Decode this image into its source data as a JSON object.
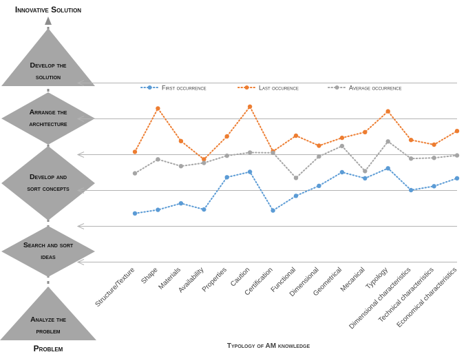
{
  "header": {
    "top_label": "Innovative Solution",
    "bottom_label": "Problem"
  },
  "stages": [
    {
      "shape": "triangle-up",
      "lines": [
        "Develop the",
        "solution"
      ]
    },
    {
      "shape": "diamond",
      "lines": [
        "Arrange the",
        "architecture"
      ]
    },
    {
      "shape": "diamond",
      "lines": [
        "Develop and",
        "sort concepts"
      ]
    },
    {
      "shape": "diamond",
      "lines": [
        "Search and sort",
        "ideas"
      ]
    },
    {
      "shape": "triangle-up",
      "lines": [
        "Analyze the",
        "problem"
      ]
    }
  ],
  "colors": {
    "shape_fill": "#a6a6a6",
    "connector": "#8c8c8c",
    "arrow": "#b3b3b3",
    "axis_text": "#404040",
    "legend_text": "#404040"
  },
  "chart_data": {
    "type": "line",
    "xlabel": "Typology of AM knowledge",
    "ylabel": "",
    "ylim": [
      0,
      5
    ],
    "grid": true,
    "legend_position": "top",
    "line_style": "dotted",
    "categories": [
      "Structure/Texture",
      "Shape",
      "Materials",
      "Availability",
      "Properties",
      "Caution",
      "Certification",
      "Functional",
      "Dimensional",
      "Geometrical",
      "Mecanical",
      "Typology",
      "Dimensional characteristics",
      "Technical characteristics",
      "Economical characteristics"
    ],
    "series": [
      {
        "name": "First occurrence",
        "color": "#5b9bd5",
        "values": [
          1.35,
          1.45,
          1.63,
          1.46,
          2.36,
          2.51,
          1.43,
          1.84,
          2.12,
          2.5,
          2.33,
          2.61,
          2.0,
          2.11,
          2.33
        ]
      },
      {
        "name": "Last occurence",
        "color": "#ed7d31",
        "values": [
          3.07,
          4.28,
          3.37,
          2.86,
          3.5,
          4.33,
          3.08,
          3.52,
          3.24,
          3.46,
          3.62,
          4.2,
          3.4,
          3.27,
          3.65
        ]
      },
      {
        "name": "Average occurrence",
        "color": "#a5a5a5",
        "values": [
          2.47,
          2.86,
          2.67,
          2.76,
          2.96,
          3.05,
          3.04,
          2.34,
          2.94,
          3.23,
          2.53,
          3.36,
          2.88,
          2.9,
          2.97
        ]
      }
    ]
  }
}
